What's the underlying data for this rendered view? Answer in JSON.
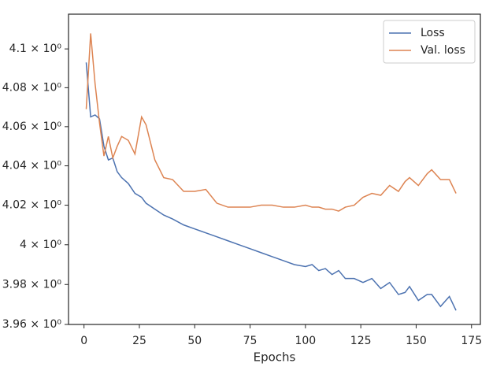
{
  "chart_data": {
    "type": "line",
    "xlabel": "Epochs",
    "log_y": true,
    "grid": false,
    "legend": "upper right",
    "x": [
      1,
      3,
      5,
      7,
      9,
      11,
      13,
      15,
      17,
      20,
      23,
      26,
      28,
      32,
      36,
      40,
      45,
      50,
      55,
      60,
      65,
      70,
      75,
      80,
      85,
      90,
      95,
      100,
      103,
      106,
      109,
      112,
      115,
      118,
      122,
      126,
      130,
      134,
      138,
      142,
      145,
      147,
      151,
      155,
      157,
      161,
      165,
      168
    ],
    "series": [
      {
        "name": "Loss",
        "color": "#4c72b0",
        "values": [
          4.093,
          4.065,
          4.066,
          4.064,
          4.05,
          4.043,
          4.044,
          4.037,
          4.034,
          4.031,
          4.026,
          4.024,
          4.021,
          4.018,
          4.015,
          4.013,
          4.01,
          4.008,
          4.006,
          4.004,
          4.002,
          4.0,
          3.998,
          3.996,
          3.994,
          3.992,
          3.99,
          3.989,
          3.99,
          3.987,
          3.988,
          3.985,
          3.987,
          3.983,
          3.983,
          3.981,
          3.983,
          3.978,
          3.981,
          3.975,
          3.976,
          3.979,
          3.972,
          3.975,
          3.975,
          3.969,
          3.974,
          3.967
        ]
      },
      {
        "name": "Val. loss",
        "color": "#dd8452",
        "values": [
          4.069,
          4.108,
          4.082,
          4.062,
          4.045,
          4.055,
          4.044,
          4.05,
          4.055,
          4.053,
          4.046,
          4.065,
          4.061,
          4.043,
          4.034,
          4.033,
          4.027,
          4.027,
          4.028,
          4.021,
          4.019,
          4.019,
          4.019,
          4.02,
          4.02,
          4.019,
          4.019,
          4.02,
          4.019,
          4.019,
          4.018,
          4.018,
          4.017,
          4.019,
          4.02,
          4.024,
          4.026,
          4.025,
          4.03,
          4.027,
          4.032,
          4.034,
          4.03,
          4.036,
          4.038,
          4.033,
          4.033,
          4.026
        ]
      }
    ],
    "xlim": [
      -7,
      179
    ],
    "xticks": [
      0,
      25,
      50,
      75,
      100,
      125,
      150,
      175
    ],
    "ylim": [
      3.96,
      4.118
    ],
    "yticks": [
      {
        "value": 3.96,
        "label": "3.96 × 10⁰"
      },
      {
        "value": 3.98,
        "label": "3.98 × 10⁰"
      },
      {
        "value": 4,
        "label": "4 × 10⁰"
      },
      {
        "value": 4.02,
        "label": "4.02 × 10⁰"
      },
      {
        "value": 4.04,
        "label": "4.04 × 10⁰"
      },
      {
        "value": 4.06,
        "label": "4.06 × 10⁰"
      },
      {
        "value": 4.08,
        "label": "4.08 × 10⁰"
      },
      {
        "value": 4.1,
        "label": "4.1 × 10⁰"
      }
    ]
  }
}
